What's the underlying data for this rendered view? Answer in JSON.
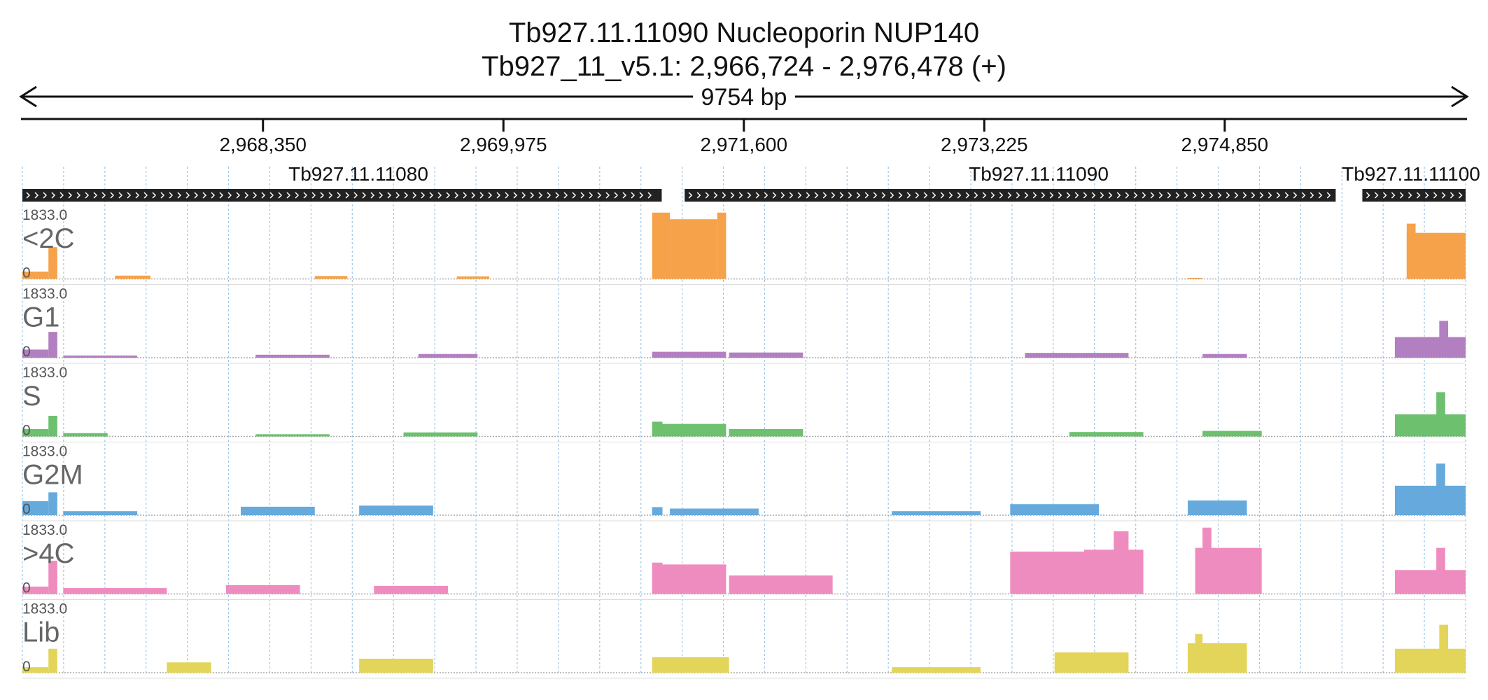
{
  "header": {
    "title": "Tb927.11.11090  Nucleoporin NUP140",
    "subtitle": "Tb927_11_v5.1: 2,966,724 - 2,976,478 (+)",
    "span_label": "9754 bp"
  },
  "chart_data": {
    "type": "area",
    "region": {
      "chromosome": "Tb927_11_v5.1",
      "start": 2966724,
      "end": 2976478,
      "strand": "+",
      "length_bp": 9754
    },
    "ticks": [
      {
        "pos": 2968350,
        "label": "2,968,350"
      },
      {
        "pos": 2969975,
        "label": "2,969,975"
      },
      {
        "pos": 2971600,
        "label": "2,971,600"
      },
      {
        "pos": 2973225,
        "label": "2,973,225"
      },
      {
        "pos": 2974850,
        "label": "2,974,850"
      }
    ],
    "genes": [
      {
        "id": "Tb927.11.11080",
        "start": 2966724,
        "end": 2971045,
        "strand": "+"
      },
      {
        "id": "Tb927.11.11090",
        "start": 2971200,
        "end": 2975600,
        "strand": "+"
      },
      {
        "id": "Tb927.11.11100",
        "start": 2975780,
        "end": 2976478,
        "strand": "+"
      }
    ],
    "tracks": [
      {
        "name": "<2C",
        "color": "#f5a24a",
        "ymax": 1833.0,
        "ymin": 0,
        "peaks": [
          [
            2966724,
            2966900,
            200
          ],
          [
            2966900,
            2966960,
            860
          ],
          [
            2967350,
            2967590,
            90
          ],
          [
            2968700,
            2968920,
            80
          ],
          [
            2969660,
            2969880,
            70
          ],
          [
            2970980,
            2971100,
            1800
          ],
          [
            2971100,
            2971420,
            1620
          ],
          [
            2971420,
            2971480,
            1800
          ],
          [
            2974600,
            2974700,
            30
          ],
          [
            2976080,
            2976478,
            1250
          ],
          [
            2976080,
            2976140,
            1500
          ]
        ]
      },
      {
        "name": "G1",
        "color": "#b27fc0",
        "ymax": 1833.0,
        "ymin": 0,
        "peaks": [
          [
            2966724,
            2966900,
            220
          ],
          [
            2966900,
            2966960,
            700
          ],
          [
            2967000,
            2967500,
            60
          ],
          [
            2968300,
            2968800,
            80
          ],
          [
            2969400,
            2969800,
            100
          ],
          [
            2970980,
            2971480,
            160
          ],
          [
            2971500,
            2972000,
            140
          ],
          [
            2973500,
            2974200,
            130
          ],
          [
            2974700,
            2975000,
            100
          ],
          [
            2976000,
            2976478,
            560
          ],
          [
            2976000,
            2976300,
            420
          ],
          [
            2976300,
            2976360,
            1000
          ]
        ]
      },
      {
        "name": "S",
        "color": "#6cc06e",
        "ymax": 1833.0,
        "ymin": 0,
        "peaks": [
          [
            2966724,
            2966900,
            200
          ],
          [
            2966900,
            2966960,
            560
          ],
          [
            2967000,
            2967300,
            90
          ],
          [
            2968300,
            2968800,
            60
          ],
          [
            2969300,
            2969800,
            110
          ],
          [
            2970980,
            2971050,
            400
          ],
          [
            2971050,
            2971480,
            340
          ],
          [
            2971500,
            2972000,
            200
          ],
          [
            2973800,
            2974300,
            120
          ],
          [
            2974700,
            2975100,
            150
          ],
          [
            2976000,
            2976478,
            600
          ],
          [
            2976280,
            2976340,
            1200
          ]
        ]
      },
      {
        "name": "G2M",
        "color": "#66aadd",
        "ymax": 1833.0,
        "ymin": 0,
        "peaks": [
          [
            2966724,
            2966900,
            380
          ],
          [
            2966900,
            2966960,
            620
          ],
          [
            2967000,
            2967500,
            110
          ],
          [
            2968200,
            2968700,
            230
          ],
          [
            2969000,
            2969500,
            260
          ],
          [
            2970980,
            2971050,
            220
          ],
          [
            2971100,
            2971700,
            180
          ],
          [
            2972600,
            2973200,
            110
          ],
          [
            2973400,
            2974000,
            300
          ],
          [
            2974600,
            2975000,
            400
          ],
          [
            2976000,
            2976478,
            800
          ],
          [
            2976280,
            2976340,
            1400
          ]
        ]
      },
      {
        "name": ">4C",
        "color": "#ef8cbf",
        "ymax": 1833.0,
        "ymin": 0,
        "peaks": [
          [
            2966724,
            2966900,
            200
          ],
          [
            2966900,
            2966960,
            900
          ],
          [
            2967000,
            2967700,
            160
          ],
          [
            2968100,
            2968600,
            240
          ],
          [
            2969100,
            2969600,
            220
          ],
          [
            2970980,
            2971050,
            850
          ],
          [
            2971050,
            2971480,
            800
          ],
          [
            2971500,
            2972200,
            500
          ],
          [
            2973400,
            2973900,
            1150
          ],
          [
            2973900,
            2974300,
            1200
          ],
          [
            2974100,
            2974200,
            1700
          ],
          [
            2974650,
            2975100,
            1250
          ],
          [
            2974700,
            2974760,
            1800
          ],
          [
            2976000,
            2976478,
            650
          ],
          [
            2976280,
            2976340,
            1250
          ]
        ]
      },
      {
        "name": "Lib",
        "color": "#e2d55a",
        "ymax": 1833.0,
        "ymin": 0,
        "peaks": [
          [
            2966724,
            2966900,
            150
          ],
          [
            2966900,
            2966960,
            650
          ],
          [
            2967700,
            2968000,
            280
          ],
          [
            2969000,
            2969500,
            380
          ],
          [
            2970980,
            2971500,
            420
          ],
          [
            2972600,
            2973200,
            150
          ],
          [
            2973700,
            2974200,
            550
          ],
          [
            2974600,
            2975000,
            800
          ],
          [
            2974650,
            2974700,
            1050
          ],
          [
            2976000,
            2976478,
            650
          ],
          [
            2976300,
            2976360,
            1300
          ]
        ]
      }
    ]
  }
}
